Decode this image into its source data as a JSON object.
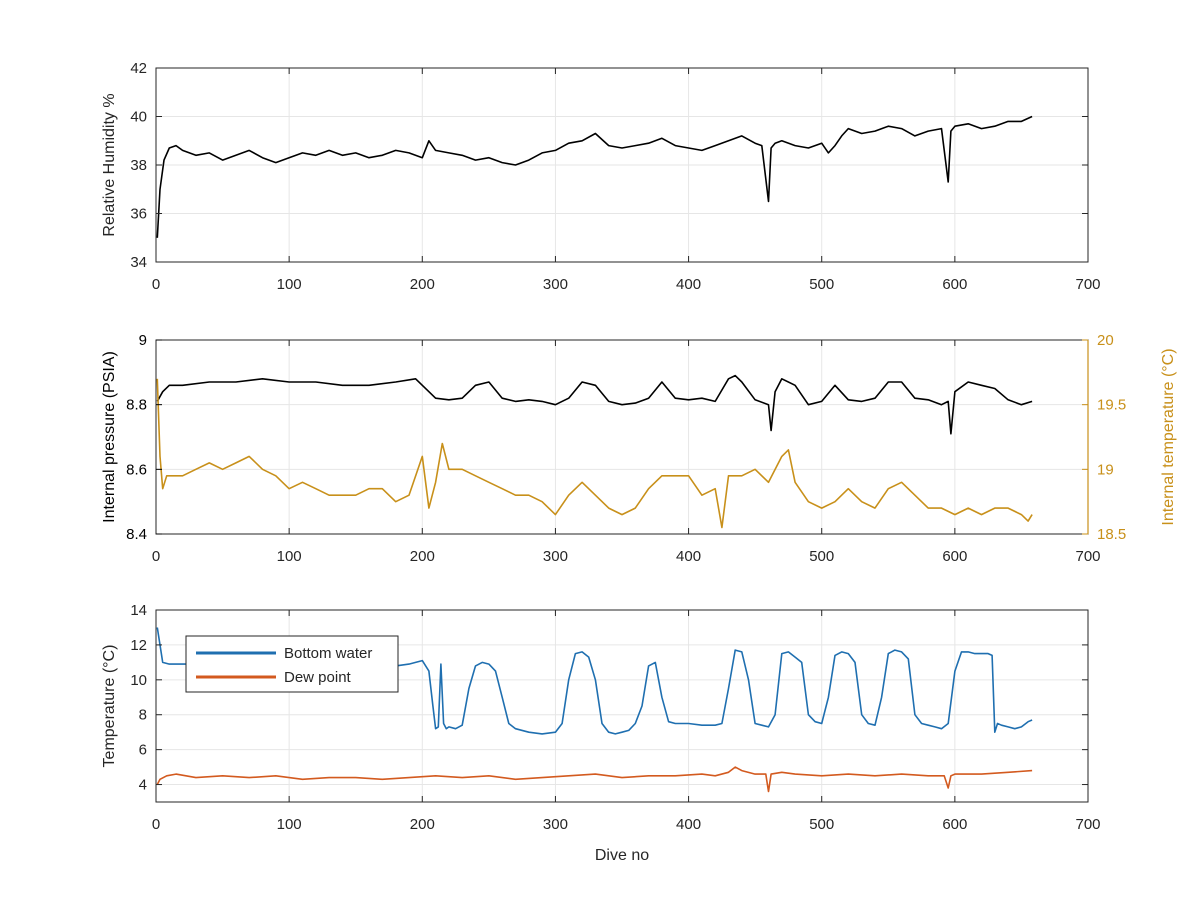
{
  "figure": {
    "xlabel": "Dive no",
    "colors": {
      "black": "#000000",
      "gold": "#C8901A",
      "blue": "#1f6fb0",
      "orange": "#d35a1f",
      "grid": "#e6e6e6",
      "axis": "#262626"
    }
  },
  "chart_data": [
    {
      "type": "line",
      "ylabel": "Relative Humidity %",
      "xlim": [
        0,
        700
      ],
      "ylim": [
        34,
        42
      ],
      "xticks": [
        "0",
        "100",
        "200",
        "300",
        "400",
        "500",
        "600",
        "700"
      ],
      "yticks": [
        "34",
        "36",
        "38",
        "40",
        "42"
      ],
      "grid": true,
      "series": [
        {
          "color": "#000000",
          "x": [
            1,
            3,
            6,
            10,
            15,
            20,
            30,
            40,
            50,
            60,
            70,
            80,
            90,
            100,
            110,
            120,
            130,
            140,
            150,
            160,
            170,
            180,
            190,
            200,
            205,
            210,
            220,
            230,
            240,
            250,
            260,
            270,
            280,
            290,
            300,
            310,
            320,
            330,
            340,
            350,
            360,
            370,
            380,
            390,
            400,
            410,
            420,
            430,
            440,
            450,
            455,
            460,
            462,
            465,
            470,
            480,
            490,
            500,
            505,
            510,
            515,
            520,
            530,
            540,
            550,
            560,
            570,
            580,
            590,
            595,
            597,
            600,
            610,
            620,
            630,
            640,
            650,
            658
          ],
          "y": [
            35.0,
            37.0,
            38.2,
            38.7,
            38.8,
            38.6,
            38.4,
            38.5,
            38.2,
            38.4,
            38.6,
            38.3,
            38.1,
            38.3,
            38.5,
            38.4,
            38.6,
            38.4,
            38.5,
            38.3,
            38.4,
            38.6,
            38.5,
            38.3,
            39.0,
            38.6,
            38.5,
            38.4,
            38.2,
            38.3,
            38.1,
            38.0,
            38.2,
            38.5,
            38.6,
            38.9,
            39.0,
            39.3,
            38.8,
            38.7,
            38.8,
            38.9,
            39.1,
            38.8,
            38.7,
            38.6,
            38.8,
            39.0,
            39.2,
            38.9,
            38.8,
            36.5,
            38.7,
            38.9,
            39.0,
            38.8,
            38.7,
            38.9,
            38.5,
            38.8,
            39.2,
            39.5,
            39.3,
            39.4,
            39.6,
            39.5,
            39.2,
            39.4,
            39.5,
            37.3,
            39.4,
            39.6,
            39.7,
            39.5,
            39.6,
            39.8,
            39.8,
            40.0
          ]
        }
      ]
    },
    {
      "type": "line",
      "ylabel": "Internal pressure (PSIA)",
      "y2label": "Internal temperature (°C)",
      "xlim": [
        0,
        700
      ],
      "ylim": [
        8.4,
        9
      ],
      "y2lim": [
        18.5,
        20
      ],
      "xticks": [
        "0",
        "100",
        "200",
        "300",
        "400",
        "500",
        "600",
        "700"
      ],
      "yticks": [
        "8.4",
        "8.6",
        "8.8",
        "9"
      ],
      "y2ticks": [
        "18.5",
        "19",
        "19.5",
        "20"
      ],
      "grid": true,
      "series": [
        {
          "axis": "left",
          "color": "#000000",
          "x": [
            1,
            5,
            10,
            20,
            40,
            60,
            80,
            100,
            120,
            140,
            160,
            180,
            195,
            200,
            205,
            210,
            220,
            230,
            240,
            250,
            260,
            270,
            280,
            290,
            300,
            310,
            320,
            330,
            340,
            350,
            360,
            370,
            380,
            390,
            400,
            410,
            420,
            430,
            435,
            440,
            450,
            460,
            462,
            465,
            470,
            480,
            490,
            500,
            510,
            520,
            530,
            540,
            550,
            560,
            570,
            580,
            590,
            595,
            597,
            600,
            610,
            620,
            630,
            640,
            650,
            658
          ],
          "y": [
            8.81,
            8.84,
            8.86,
            8.86,
            8.87,
            8.87,
            8.88,
            8.87,
            8.87,
            8.86,
            8.86,
            8.87,
            8.88,
            8.86,
            8.84,
            8.82,
            8.815,
            8.82,
            8.86,
            8.87,
            8.82,
            8.81,
            8.815,
            8.81,
            8.8,
            8.82,
            8.87,
            8.86,
            8.81,
            8.8,
            8.805,
            8.82,
            8.87,
            8.82,
            8.815,
            8.82,
            8.81,
            8.88,
            8.89,
            8.87,
            8.815,
            8.8,
            8.72,
            8.84,
            8.88,
            8.86,
            8.8,
            8.81,
            8.86,
            8.815,
            8.81,
            8.82,
            8.87,
            8.87,
            8.82,
            8.815,
            8.8,
            8.81,
            8.71,
            8.84,
            8.87,
            8.86,
            8.85,
            8.815,
            8.8,
            8.81
          ]
        },
        {
          "axis": "right",
          "color": "#C8901A",
          "x": [
            1,
            3,
            5,
            8,
            10,
            20,
            30,
            40,
            50,
            60,
            70,
            80,
            90,
            100,
            110,
            120,
            130,
            140,
            150,
            160,
            170,
            180,
            190,
            200,
            205,
            210,
            215,
            220,
            230,
            240,
            250,
            260,
            270,
            280,
            290,
            300,
            310,
            320,
            330,
            340,
            350,
            360,
            370,
            380,
            390,
            400,
            410,
            420,
            425,
            430,
            440,
            450,
            460,
            470,
            475,
            480,
            490,
            500,
            510,
            520,
            530,
            540,
            550,
            560,
            570,
            580,
            590,
            600,
            610,
            620,
            630,
            640,
            650,
            655,
            658
          ],
          "y": [
            19.7,
            19.1,
            18.85,
            18.95,
            18.95,
            18.95,
            19.0,
            19.05,
            19.0,
            19.05,
            19.1,
            19.0,
            18.95,
            18.85,
            18.9,
            18.85,
            18.8,
            18.8,
            18.8,
            18.85,
            18.85,
            18.75,
            18.8,
            19.1,
            18.7,
            18.9,
            19.2,
            19.0,
            19.0,
            18.95,
            18.9,
            18.85,
            18.8,
            18.8,
            18.75,
            18.65,
            18.8,
            18.9,
            18.8,
            18.7,
            18.65,
            18.7,
            18.85,
            18.95,
            18.95,
            18.95,
            18.8,
            18.85,
            18.55,
            18.95,
            18.95,
            19.0,
            18.9,
            19.1,
            19.15,
            18.9,
            18.75,
            18.7,
            18.75,
            18.85,
            18.75,
            18.7,
            18.85,
            18.9,
            18.8,
            18.7,
            18.7,
            18.65,
            18.7,
            18.65,
            18.7,
            18.7,
            18.65,
            18.6,
            18.65
          ]
        }
      ]
    },
    {
      "type": "line",
      "ylabel": "Temperature (°C)",
      "xlabel": "Dive no",
      "xlim": [
        0,
        700
      ],
      "ylim": [
        3,
        14
      ],
      "xticks": [
        "0",
        "100",
        "200",
        "300",
        "400",
        "500",
        "600",
        "700"
      ],
      "yticks": [
        "4",
        "6",
        "8",
        "10",
        "12",
        "14"
      ],
      "grid": true,
      "legend": "top-left",
      "series": [
        {
          "name": "Bottom water",
          "color": "#1f6fb0",
          "x": [
            1,
            3,
            5,
            10,
            20,
            40,
            60,
            80,
            100,
            120,
            140,
            160,
            180,
            190,
            195,
            200,
            205,
            208,
            210,
            212,
            214,
            216,
            218,
            220,
            225,
            230,
            235,
            240,
            245,
            250,
            255,
            260,
            265,
            270,
            280,
            290,
            300,
            305,
            310,
            315,
            320,
            325,
            330,
            335,
            340,
            345,
            350,
            355,
            360,
            365,
            370,
            375,
            380,
            385,
            390,
            400,
            410,
            420,
            425,
            430,
            435,
            440,
            445,
            450,
            455,
            460,
            465,
            470,
            475,
            480,
            485,
            490,
            495,
            500,
            505,
            510,
            515,
            520,
            525,
            530,
            535,
            540,
            545,
            550,
            555,
            560,
            565,
            570,
            575,
            580,
            585,
            590,
            595,
            600,
            605,
            610,
            615,
            620,
            625,
            628,
            630,
            632,
            635,
            640,
            645,
            650,
            655,
            658
          ],
          "y": [
            13.0,
            12.0,
            11.0,
            10.9,
            10.9,
            10.9,
            10.9,
            10.8,
            10.8,
            10.8,
            10.8,
            10.8,
            10.8,
            10.9,
            11.0,
            11.1,
            10.5,
            8.5,
            7.2,
            7.3,
            10.9,
            7.5,
            7.2,
            7.3,
            7.2,
            7.4,
            9.5,
            10.8,
            11.0,
            10.9,
            10.5,
            9.0,
            7.5,
            7.2,
            7.0,
            6.9,
            7.0,
            7.5,
            10.0,
            11.5,
            11.6,
            11.3,
            10.0,
            7.5,
            7.0,
            6.9,
            7.0,
            7.1,
            7.5,
            8.5,
            10.8,
            11.0,
            9.0,
            7.6,
            7.5,
            7.5,
            7.4,
            7.4,
            7.5,
            9.5,
            11.7,
            11.6,
            10.0,
            7.5,
            7.4,
            7.3,
            8.0,
            11.5,
            11.6,
            11.3,
            11.0,
            8.0,
            7.6,
            7.5,
            9.0,
            11.4,
            11.6,
            11.5,
            11.0,
            8.0,
            7.5,
            7.4,
            9.0,
            11.5,
            11.7,
            11.6,
            11.2,
            8.0,
            7.5,
            7.4,
            7.3,
            7.2,
            7.5,
            10.5,
            11.6,
            11.6,
            11.5,
            11.5,
            11.5,
            11.4,
            7.0,
            7.5,
            7.4,
            7.3,
            7.2,
            7.3,
            7.6,
            7.7
          ]
        },
        {
          "name": "Dew point",
          "color": "#d35a1f",
          "x": [
            1,
            3,
            8,
            15,
            30,
            50,
            70,
            90,
            110,
            130,
            150,
            170,
            190,
            210,
            230,
            250,
            270,
            290,
            310,
            330,
            350,
            370,
            390,
            410,
            420,
            430,
            435,
            440,
            450,
            458,
            460,
            462,
            470,
            480,
            500,
            520,
            540,
            560,
            580,
            592,
            595,
            597,
            600,
            620,
            640,
            658
          ],
          "y": [
            4.0,
            4.3,
            4.5,
            4.6,
            4.4,
            4.5,
            4.4,
            4.5,
            4.3,
            4.4,
            4.4,
            4.3,
            4.4,
            4.5,
            4.4,
            4.5,
            4.3,
            4.4,
            4.5,
            4.6,
            4.4,
            4.5,
            4.5,
            4.6,
            4.5,
            4.7,
            5.0,
            4.8,
            4.6,
            4.6,
            3.6,
            4.6,
            4.7,
            4.6,
            4.5,
            4.6,
            4.5,
            4.6,
            4.5,
            4.5,
            3.8,
            4.5,
            4.6,
            4.6,
            4.7,
            4.8
          ]
        }
      ]
    }
  ]
}
